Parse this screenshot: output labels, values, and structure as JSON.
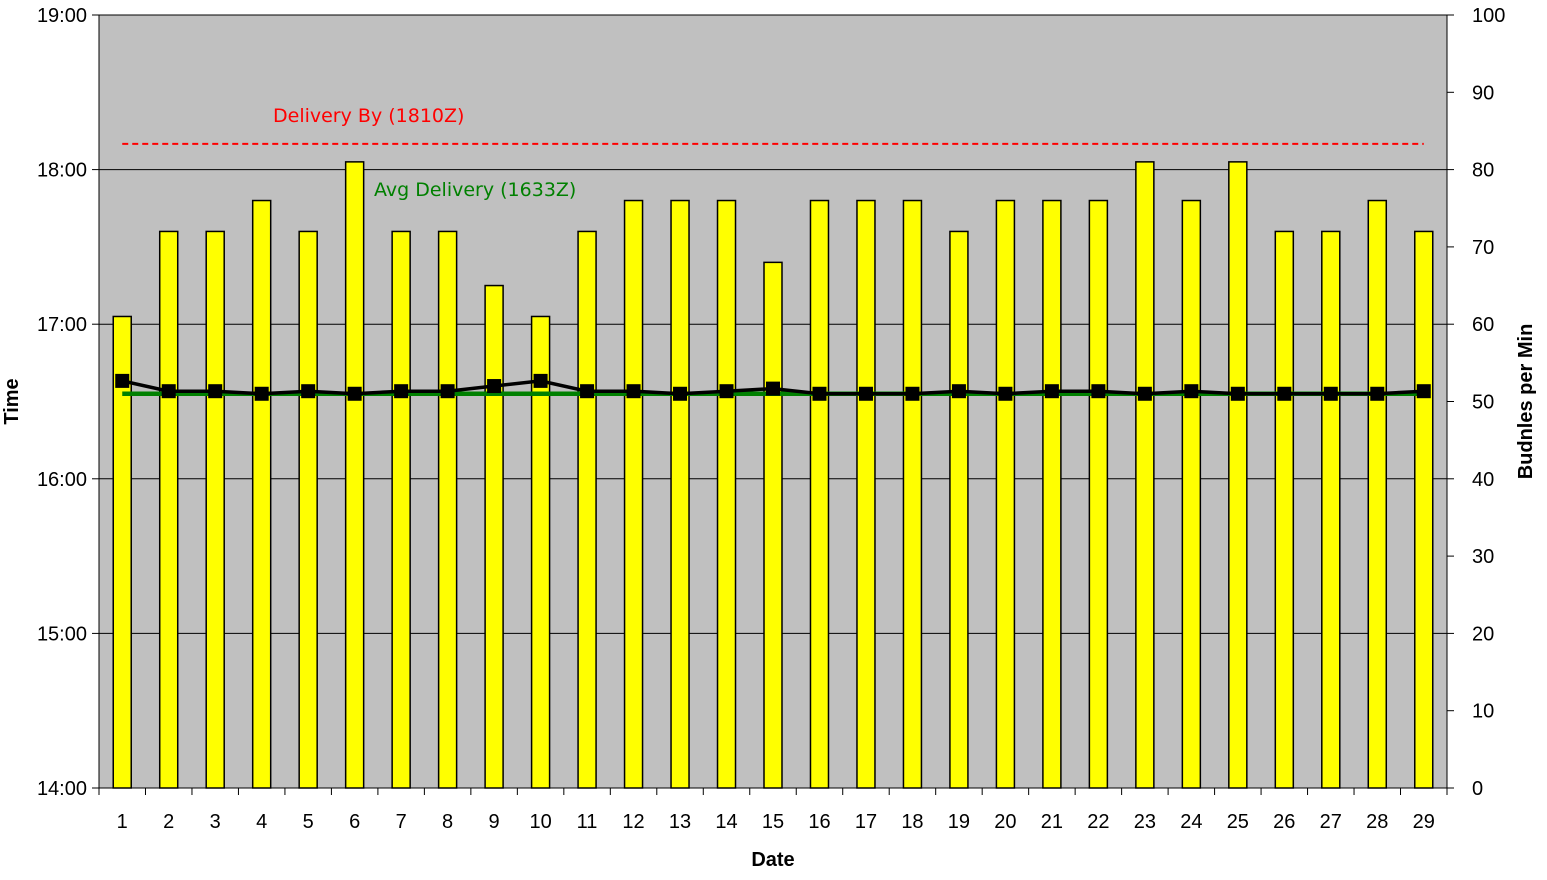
{
  "chart_data": {
    "type": "bar",
    "title": "",
    "xlabel": "Date",
    "ylabel_left": "Time",
    "ylabel_right": "Budnles per Min",
    "left_axis": {
      "min_minutes": 840,
      "max_minutes": 1140,
      "ticks": [
        "14:00",
        "15:00",
        "16:00",
        "17:00",
        "18:00",
        "19:00"
      ]
    },
    "right_axis": {
      "ylim": [
        0,
        100
      ],
      "ticks": [
        "0",
        "10",
        "20",
        "30",
        "40",
        "50",
        "60",
        "70",
        "80",
        "90",
        "100"
      ]
    },
    "grid": true,
    "categories": [
      "1",
      "2",
      "3",
      "4",
      "5",
      "6",
      "7",
      "8",
      "9",
      "10",
      "11",
      "12",
      "13",
      "14",
      "15",
      "16",
      "17",
      "18",
      "19",
      "20",
      "21",
      "22",
      "23",
      "24",
      "25",
      "26",
      "27",
      "28",
      "29"
    ],
    "series": [
      {
        "kind": "bar",
        "axis": "right",
        "color": "#FFFF00",
        "values": [
          61,
          72,
          72,
          76,
          72,
          81,
          72,
          72,
          65,
          61,
          72,
          76,
          76,
          76,
          68,
          76,
          76,
          76,
          72,
          76,
          76,
          76,
          81,
          76,
          81,
          72,
          72,
          76,
          72
        ]
      },
      {
        "kind": "line",
        "axis": "left",
        "color": "#000000",
        "values": [
          "16:38",
          "16:34",
          "16:34",
          "16:33",
          "16:34",
          "16:33",
          "16:34",
          "16:34",
          "16:36",
          "16:38",
          "16:34",
          "16:34",
          "16:33",
          "16:34",
          "16:35",
          "16:33",
          "16:33",
          "16:33",
          "16:34",
          "16:33",
          "16:34",
          "16:34",
          "16:33",
          "16:34",
          "16:33",
          "16:33",
          "16:33",
          "16:33",
          "16:34"
        ]
      }
    ],
    "reference_lines": [
      {
        "label": "Delivery By (1810Z)",
        "time": "18:10",
        "color": "#FF0000",
        "style": "dashed"
      },
      {
        "label": "Avg Delivery (1633Z)",
        "time": "16:33",
        "color": "#008000",
        "style": "solid"
      }
    ],
    "colors": {
      "plot_background": "#C0C0C0",
      "bar_fill": "#FFFF00"
    }
  }
}
